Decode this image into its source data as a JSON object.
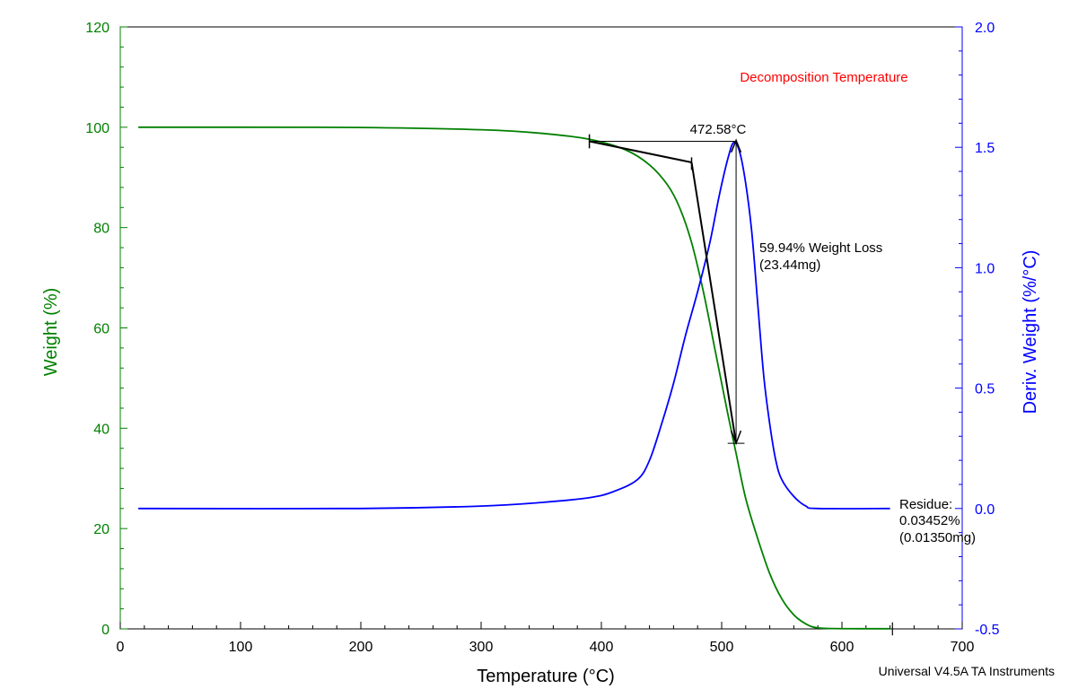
{
  "chart_data": {
    "type": "line",
    "annotation_title": "Decomposition Temperature",
    "xlabel": "Temperature (°C)",
    "ylabel_left": "Weight (%)",
    "ylabel_right": "Deriv. Weight (%/°C)",
    "xlim": [
      0,
      700
    ],
    "ylim_left": [
      0,
      120
    ],
    "ylim_right": [
      -0.5,
      2.0
    ],
    "x_ticks": [
      "0",
      "100",
      "200",
      "300",
      "400",
      "500",
      "600",
      "700"
    ],
    "y_left_ticks": [
      "0",
      "20",
      "40",
      "60",
      "80",
      "100",
      "120"
    ],
    "y_right_ticks": [
      "-0.5",
      "0.0",
      "0.5",
      "1.0",
      "1.5",
      "2.0"
    ],
    "colors": {
      "weight": "#008000",
      "deriv": "#0000ff",
      "annotation": "#ff0000",
      "axis_left": "#008000",
      "axis_right": "#0000ff"
    },
    "series": [
      {
        "axis": "left",
        "color": "#008000",
        "points": [
          [
            15,
            100
          ],
          [
            100,
            100.0
          ],
          [
            200,
            99.95
          ],
          [
            300,
            99.5
          ],
          [
            350,
            98.8
          ],
          [
            390,
            97.6
          ],
          [
            420,
            95.5
          ],
          [
            440,
            92.5
          ],
          [
            455,
            88.5
          ],
          [
            465,
            84
          ],
          [
            475,
            77
          ],
          [
            485,
            67
          ],
          [
            495,
            55
          ],
          [
            505,
            43
          ],
          [
            512,
            35
          ],
          [
            520,
            26
          ],
          [
            530,
            18
          ],
          [
            540,
            11
          ],
          [
            550,
            6
          ],
          [
            560,
            2.8
          ],
          [
            570,
            1
          ],
          [
            580,
            0.2
          ],
          [
            600,
            0.05
          ],
          [
            640,
            0.03452
          ]
        ]
      },
      {
        "axis": "right",
        "color": "#0000ff",
        "points": [
          [
            15,
            0
          ],
          [
            200,
            0.0
          ],
          [
            300,
            0.01
          ],
          [
            350,
            0.025
          ],
          [
            390,
            0.045
          ],
          [
            410,
            0.07
          ],
          [
            430,
            0.12
          ],
          [
            440,
            0.2
          ],
          [
            450,
            0.35
          ],
          [
            460,
            0.52
          ],
          [
            470,
            0.72
          ],
          [
            480,
            0.9
          ],
          [
            490,
            1.1
          ],
          [
            498,
            1.3
          ],
          [
            505,
            1.45
          ],
          [
            510,
            1.52
          ],
          [
            515,
            1.48
          ],
          [
            520,
            1.35
          ],
          [
            525,
            1.15
          ],
          [
            530,
            0.85
          ],
          [
            535,
            0.55
          ],
          [
            540,
            0.35
          ],
          [
            545,
            0.2
          ],
          [
            550,
            0.12
          ],
          [
            560,
            0.05
          ],
          [
            570,
            0.01
          ],
          [
            580,
            0
          ],
          [
            640,
            0
          ]
        ]
      }
    ],
    "annotations": {
      "peak_temp_label": "472.58°C",
      "weight_loss_line1": "59.94% Weight Loss",
      "weight_loss_line2": "(23.44mg)",
      "residue_line1": "Residue:",
      "residue_line2": "0.03452%",
      "residue_line3": "(0.01350mg)"
    },
    "footer": "Universal V4.5A TA Instruments"
  }
}
